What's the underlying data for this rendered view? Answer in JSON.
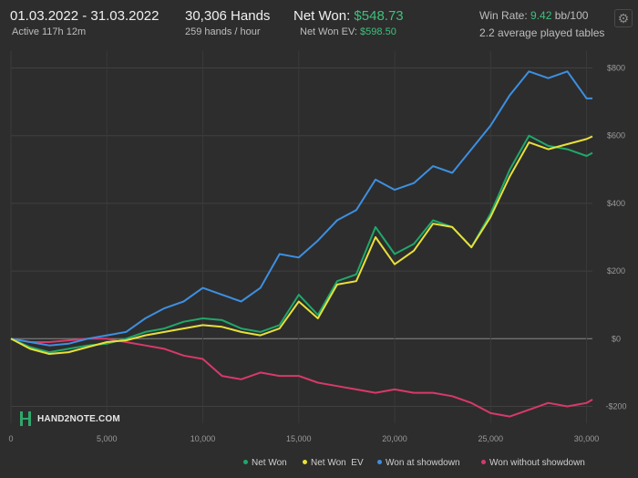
{
  "header": {
    "date_range": "01.03.2022 - 31.03.2022",
    "active": "Active 117h 12m",
    "hands": "30,306 Hands",
    "hands_rate": "259 hands / hour",
    "net_won_label": "Net Won:",
    "net_won_value": "$548.73",
    "net_won_ev_label": "Net Won  EV:",
    "net_won_ev_value": "$598.50",
    "win_rate_label": "Win Rate:",
    "win_rate_value": "9.42",
    "win_rate_unit": "bb/100",
    "tables": "2.2 average played tables"
  },
  "icons": {
    "settings": "gear-icon"
  },
  "logo": {
    "text": "HAND2NOTE.COM"
  },
  "legend": [
    {
      "label": "Net Won",
      "color": "#1fa86a"
    },
    {
      "label": "Net Won  EV",
      "color": "#e8e03a"
    },
    {
      "label": "Won at showdown",
      "color": "#3d8fe0"
    },
    {
      "label": "Won without showdown",
      "color": "#d8396a"
    }
  ],
  "chart_data": {
    "type": "line",
    "xlim": [
      0,
      30306
    ],
    "ylim": [
      -250,
      850
    ],
    "x_ticks": [
      0,
      5000,
      10000,
      15000,
      20000,
      25000,
      30000
    ],
    "x_tick_labels": [
      "0",
      "5,000",
      "10,000",
      "15,000",
      "20,000",
      "25,000",
      "30,000"
    ],
    "y_ticks": [
      800,
      600,
      400,
      200,
      0,
      -200
    ],
    "y_tick_labels": [
      "$800",
      "$600",
      "$400",
      "$200",
      "$0",
      "-$200"
    ],
    "grid": true,
    "legend_position": "bottom-right",
    "x": [
      0,
      1000,
      2000,
      3000,
      4000,
      5000,
      6000,
      7000,
      8000,
      9000,
      10000,
      11000,
      12000,
      13000,
      14000,
      15000,
      16000,
      17000,
      18000,
      19000,
      20000,
      21000,
      22000,
      23000,
      24000,
      25000,
      26000,
      27000,
      28000,
      29000,
      30000,
      30306
    ],
    "series": [
      {
        "name": "Net Won",
        "color": "#1fa86a",
        "values": [
          0,
          -25,
          -40,
          -30,
          -20,
          -15,
          0,
          20,
          30,
          50,
          60,
          55,
          30,
          20,
          40,
          130,
          70,
          170,
          190,
          330,
          250,
          280,
          350,
          330,
          270,
          370,
          500,
          600,
          570,
          560,
          540,
          549
        ]
      },
      {
        "name": "Net Won  EV",
        "color": "#e8e03a",
        "values": [
          0,
          -30,
          -45,
          -40,
          -25,
          -10,
          -5,
          10,
          20,
          30,
          40,
          35,
          20,
          10,
          30,
          110,
          60,
          160,
          170,
          300,
          220,
          260,
          340,
          330,
          270,
          360,
          480,
          580,
          560,
          575,
          590,
          598
        ]
      },
      {
        "name": "Won at showdown",
        "color": "#3d8fe0",
        "values": [
          0,
          -10,
          -20,
          -15,
          0,
          10,
          20,
          60,
          90,
          110,
          150,
          130,
          110,
          150,
          250,
          240,
          290,
          350,
          380,
          470,
          440,
          460,
          510,
          490,
          560,
          630,
          720,
          790,
          770,
          790,
          710,
          710
        ]
      },
      {
        "name": "Won without showdown",
        "color": "#d8396a",
        "values": [
          0,
          -10,
          -10,
          -5,
          0,
          0,
          -10,
          -20,
          -30,
          -50,
          -60,
          -110,
          -120,
          -100,
          -110,
          -110,
          -130,
          -140,
          -150,
          -160,
          -150,
          -160,
          -160,
          -170,
          -190,
          -220,
          -230,
          -210,
          -190,
          -200,
          -190,
          -180
        ]
      }
    ]
  }
}
